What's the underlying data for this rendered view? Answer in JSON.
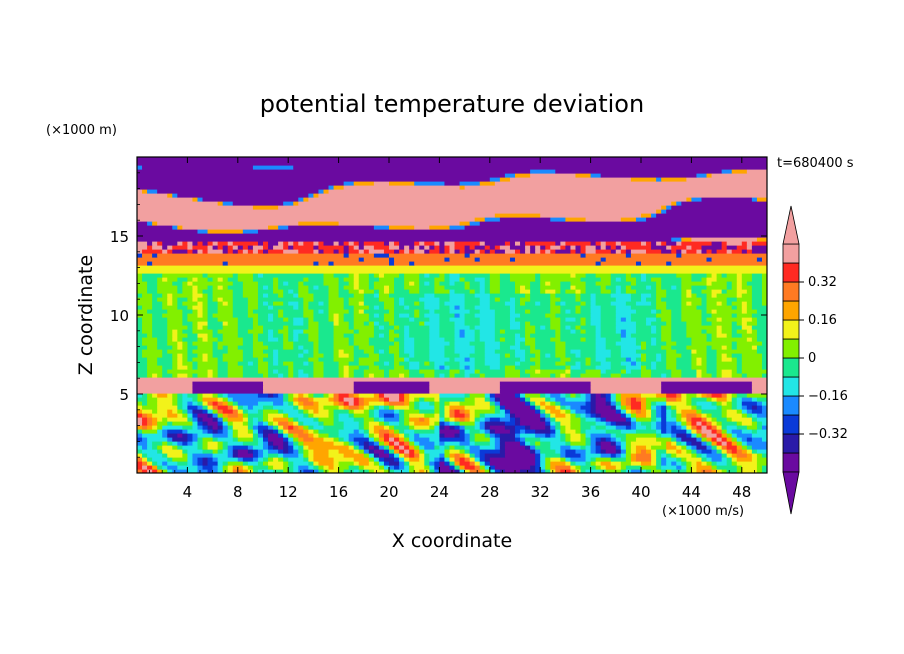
{
  "chart_data": {
    "type": "heatmap",
    "title": "potential temperature deviation",
    "xlabel": "X coordinate",
    "ylabel": "Z coordinate",
    "x_unit": "(×1000 m/s)",
    "y_unit": "(×1000 m)",
    "time_label": "t=680400 s",
    "xlim": [
      0,
      50
    ],
    "ylim": [
      0,
      20
    ],
    "x_ticks": [
      4,
      8,
      12,
      16,
      20,
      24,
      28,
      32,
      36,
      40,
      44,
      48
    ],
    "y_ticks": [
      5,
      10,
      15
    ],
    "colorbar": {
      "levels": [
        -0.48,
        -0.4,
        -0.32,
        -0.24,
        -0.16,
        -0.08,
        0,
        0.08,
        0.16,
        0.24,
        0.32,
        0.4,
        0.48
      ],
      "labels": [
        "0.32",
        "0.16",
        "0",
        "−0.16",
        "−0.32"
      ],
      "label_values": [
        0.32,
        0.16,
        0,
        -0.16,
        -0.32
      ],
      "colors": [
        "#6a0aa0",
        "#2a1aa8",
        "#0a3ad8",
        "#1a8aff",
        "#22e6e6",
        "#1ae88e",
        "#82f000",
        "#f2f21a",
        "#ffa500",
        "#ff7a22",
        "#ff2a22",
        "#f2a0a0"
      ],
      "extend": "both"
    },
    "field_description_bands": [
      {
        "z_range": [
          0,
          5
        ],
        "pattern": "turbulent eddies, values -0.48 to 0.40"
      },
      {
        "z_range": [
          5,
          6
        ],
        "pattern": "mixed strong positive/negative layer"
      },
      {
        "z_range": [
          6,
          13
        ],
        "pattern": "near-zero band, -0.08 to 0.08"
      },
      {
        "z_range": [
          13,
          15
        ],
        "pattern": "positive layer with speckles"
      },
      {
        "z_range": [
          15,
          20
        ],
        "pattern": "alternating strong positive/negative layers"
      }
    ]
  }
}
